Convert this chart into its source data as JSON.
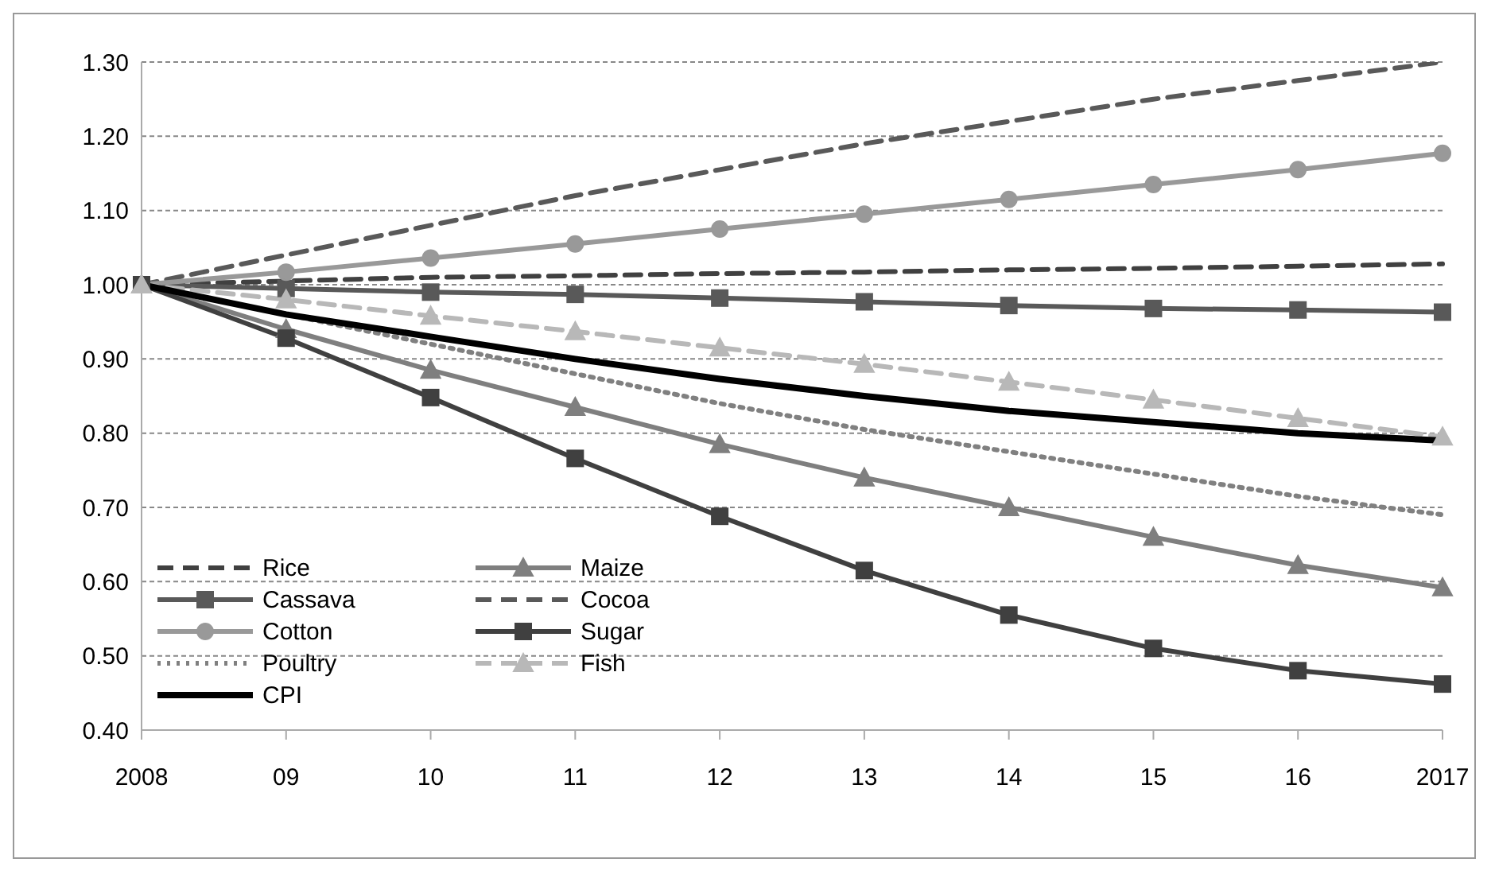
{
  "chart_data": {
    "type": "line",
    "categories": [
      "2008",
      "09",
      "10",
      "11",
      "12",
      "13",
      "14",
      "15",
      "16",
      "2017"
    ],
    "ylim": [
      0.4,
      1.3
    ],
    "yticks": [
      {
        "value": 0.4,
        "label": "0.40"
      },
      {
        "value": 0.5,
        "label": "0.50"
      },
      {
        "value": 0.6,
        "label": "0.60"
      },
      {
        "value": 0.7,
        "label": "0.70"
      },
      {
        "value": 0.8,
        "label": "0.80"
      },
      {
        "value": 0.9,
        "label": "0.90"
      },
      {
        "value": 1.0,
        "label": "1.00"
      },
      {
        "value": 1.1,
        "label": "1.10"
      },
      {
        "value": 1.2,
        "label": "1.20"
      },
      {
        "value": 1.3,
        "label": "1.30"
      }
    ],
    "grid": "y",
    "legend": "bottom left",
    "series": [
      {
        "name": "Rice",
        "color": "#404040",
        "line_style": "dashed",
        "marker": "none",
        "values": [
          1.0,
          1.005,
          1.01,
          1.012,
          1.015,
          1.017,
          1.02,
          1.022,
          1.025,
          1.028
        ]
      },
      {
        "name": "Maize",
        "color": "#7f7f7f",
        "line_style": "solid",
        "marker": "triangle",
        "values": [
          1.0,
          0.94,
          0.885,
          0.835,
          0.785,
          0.74,
          0.7,
          0.66,
          0.622,
          0.592
        ]
      },
      {
        "name": "Cassava",
        "color": "#595959",
        "line_style": "solid",
        "marker": "square",
        "values": [
          1.0,
          0.995,
          0.99,
          0.987,
          0.982,
          0.977,
          0.972,
          0.968,
          0.966,
          0.963
        ]
      },
      {
        "name": "Cocoa",
        "color": "#595959",
        "line_style": "dashed",
        "marker": "none",
        "values": [
          1.0,
          1.04,
          1.08,
          1.12,
          1.155,
          1.19,
          1.22,
          1.25,
          1.275,
          1.3
        ]
      },
      {
        "name": "Cotton",
        "color": "#999999",
        "line_style": "solid",
        "marker": "circle",
        "values": [
          1.0,
          1.017,
          1.036,
          1.055,
          1.075,
          1.095,
          1.115,
          1.135,
          1.155,
          1.177
        ]
      },
      {
        "name": "Sugar",
        "color": "#404040",
        "line_style": "solid",
        "marker": "square",
        "values": [
          1.0,
          0.928,
          0.848,
          0.766,
          0.688,
          0.615,
          0.555,
          0.51,
          0.48,
          0.462
        ]
      },
      {
        "name": "Poultry",
        "color": "#808080",
        "line_style": "dotted",
        "marker": "none",
        "values": [
          1.0,
          0.96,
          0.92,
          0.88,
          0.84,
          0.805,
          0.775,
          0.745,
          0.715,
          0.69
        ]
      },
      {
        "name": "Fish",
        "color": "#b8b8b8",
        "line_style": "dashed",
        "marker": "triangle",
        "values": [
          1.0,
          0.98,
          0.958,
          0.937,
          0.915,
          0.893,
          0.869,
          0.845,
          0.82,
          0.795
        ]
      },
      {
        "name": "CPI",
        "color": "#000000",
        "line_style": "solid",
        "marker": "none",
        "values": [
          1.0,
          0.96,
          0.93,
          0.9,
          0.873,
          0.85,
          0.83,
          0.815,
          0.8,
          0.79
        ]
      }
    ]
  }
}
